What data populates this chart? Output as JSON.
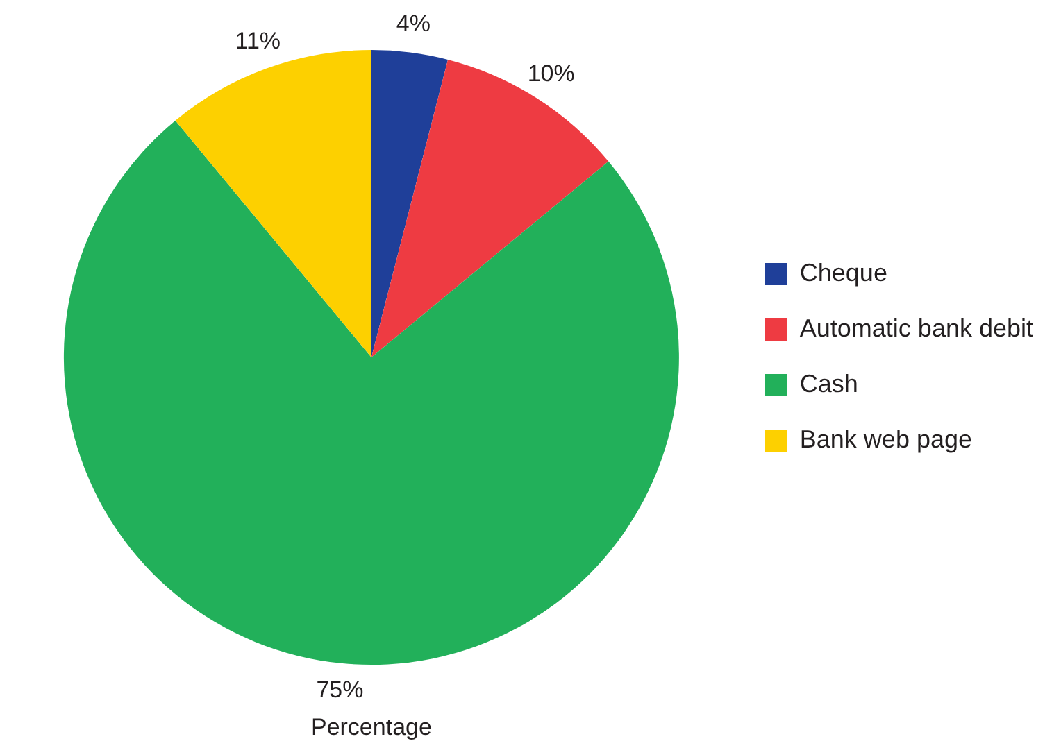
{
  "chart_data": {
    "type": "pie",
    "xlabel": "Percentage",
    "categories": [
      "Cheque",
      "Automatic bank debit",
      "Cash",
      "Bank web page"
    ],
    "values": [
      4,
      10,
      75,
      11
    ],
    "colors": [
      "#1f3f99",
      "#ee3b42",
      "#22b05a",
      "#fdd000"
    ],
    "value_labels": [
      "4%",
      "10%",
      "75%",
      "11%"
    ],
    "legend": "right"
  }
}
